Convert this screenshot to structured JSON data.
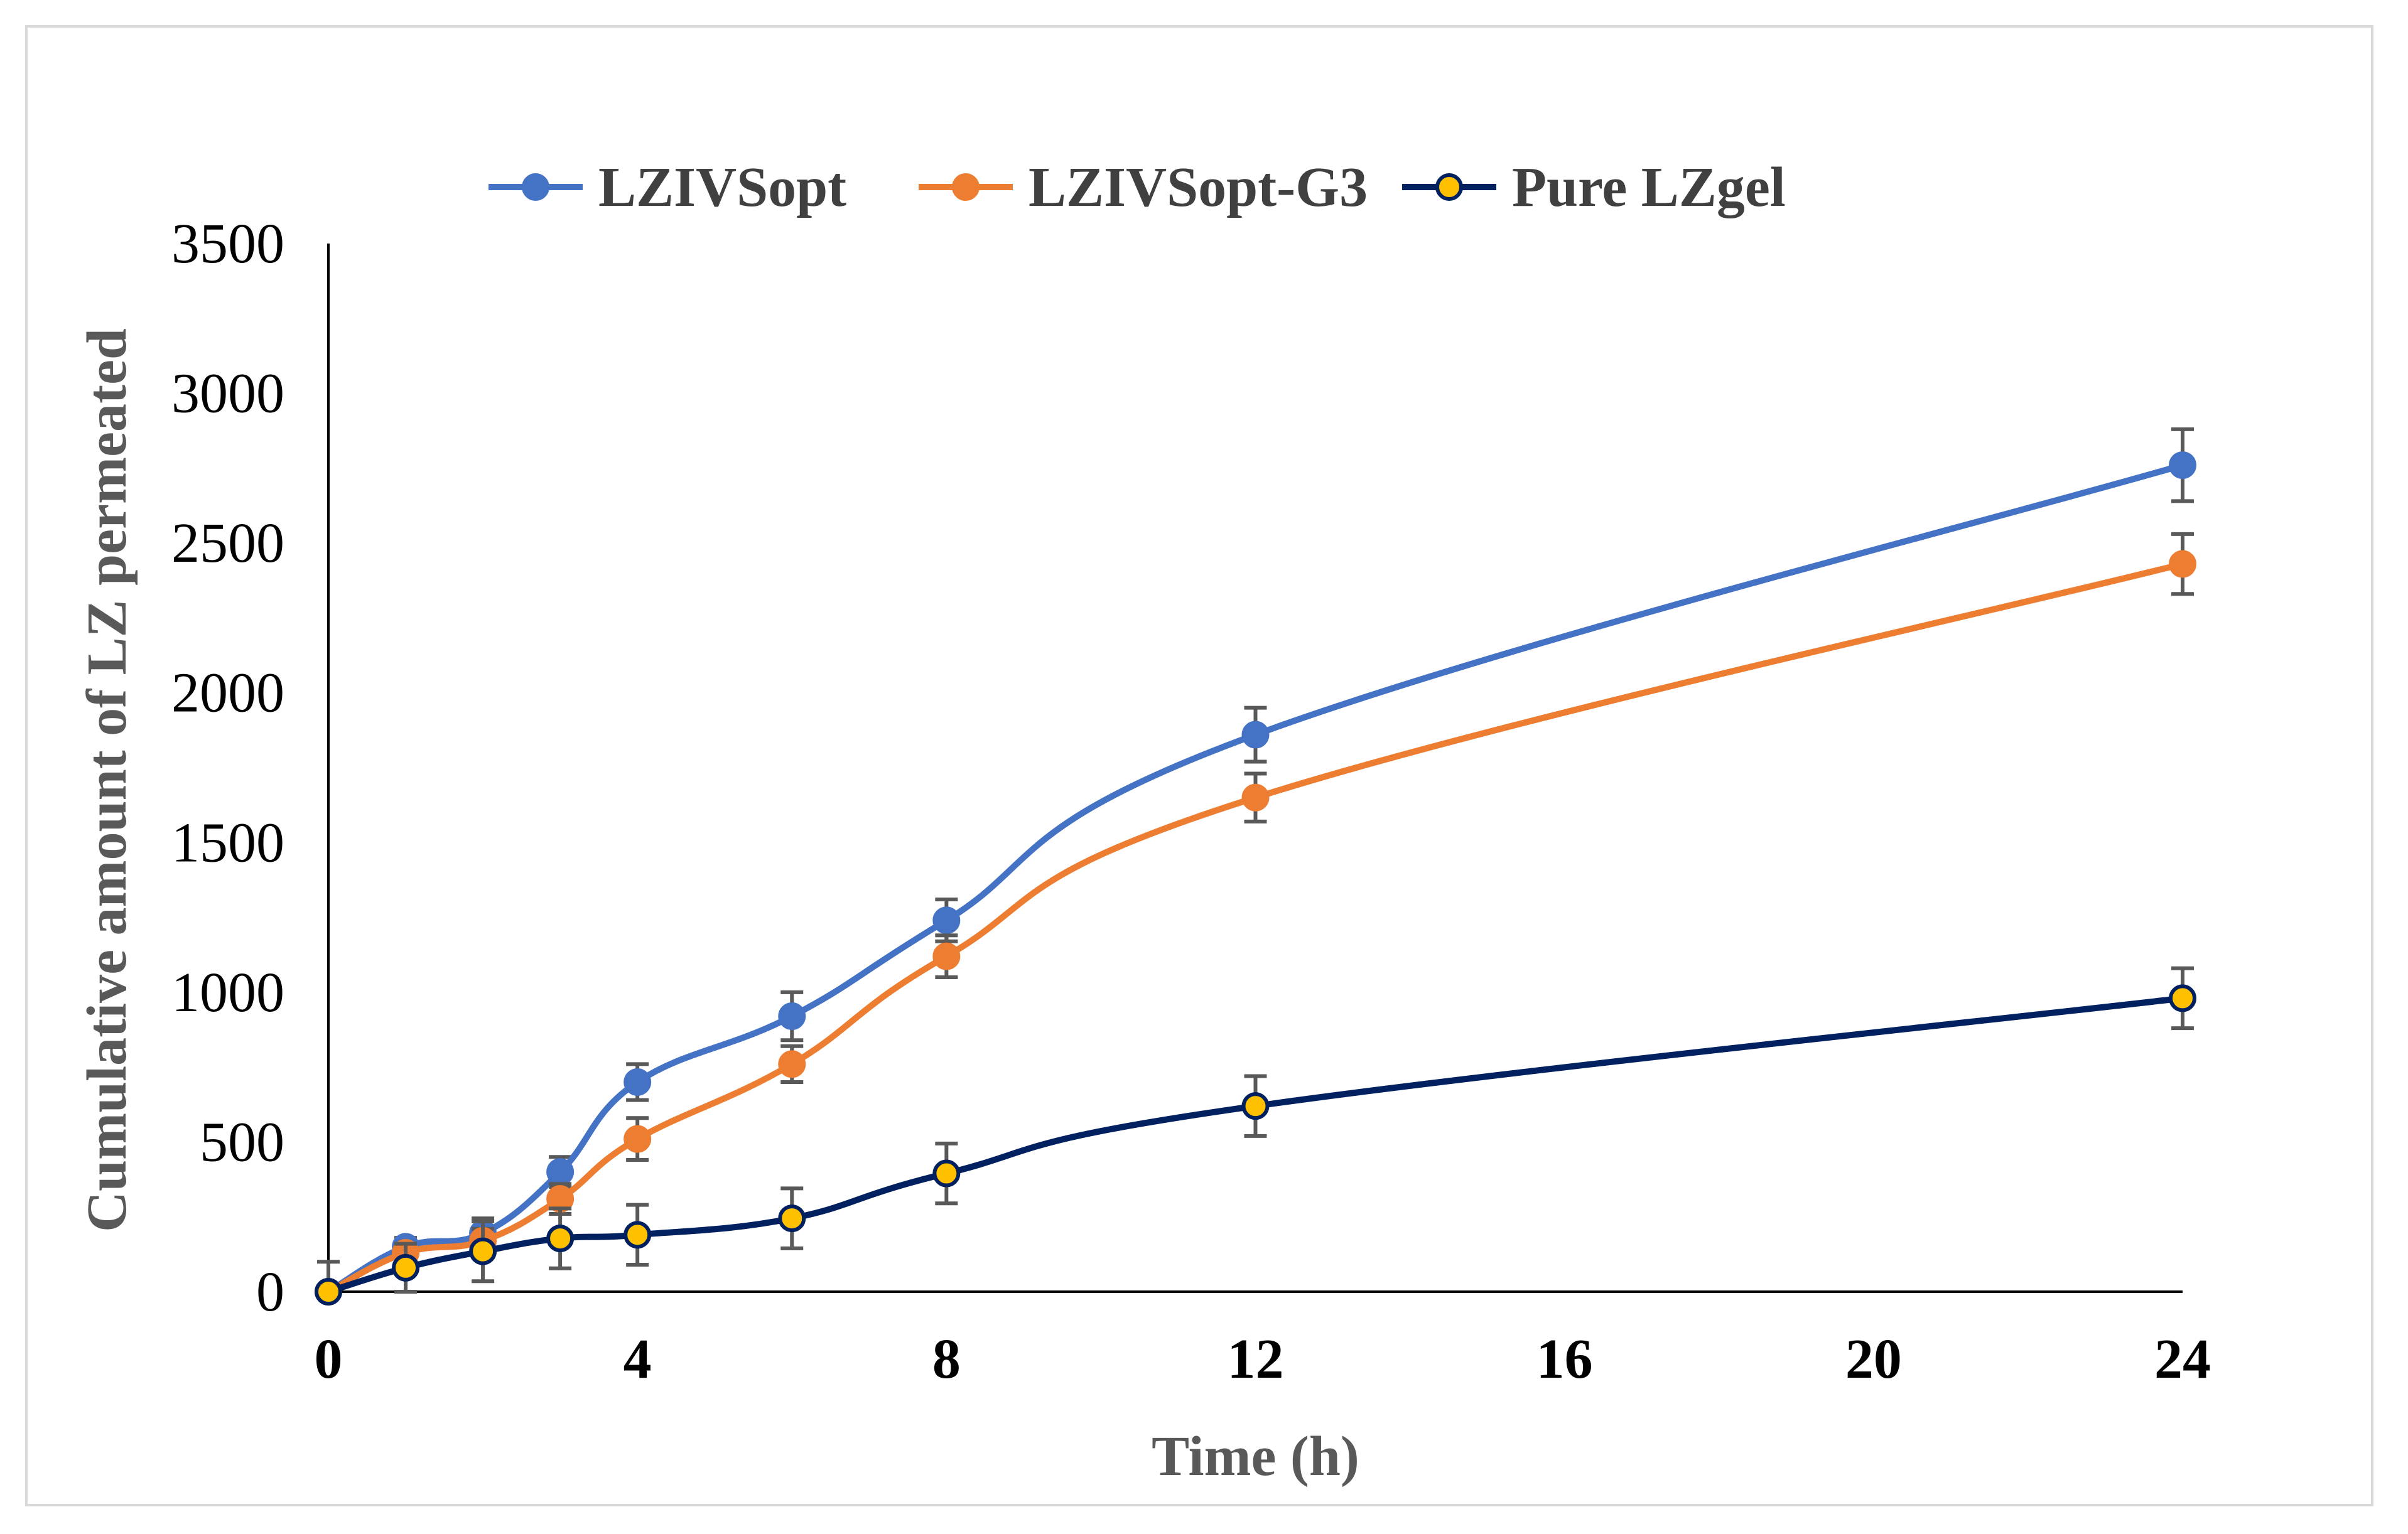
{
  "chart_data": {
    "type": "line",
    "title": "",
    "xlabel": "Time (h)",
    "ylabel": "Cumulative amount of LZ permeated",
    "xlim": [
      0,
      24
    ],
    "ylim": [
      0,
      3500
    ],
    "xticks": [
      0,
      4,
      8,
      12,
      16,
      20,
      24
    ],
    "xtick_labels": [
      "0",
      "4",
      "8",
      "12",
      "16",
      "20",
      "24"
    ],
    "yticks": [
      0,
      500,
      1000,
      1500,
      2000,
      2500,
      3000,
      3500
    ],
    "ytick_labels": [
      "0",
      "500",
      "1000",
      "1500",
      "2000",
      "2500",
      "3000",
      "3500"
    ],
    "grid": false,
    "legend_position": "top",
    "x_positions": [
      0,
      1,
      2,
      3,
      4,
      6,
      8,
      12,
      24
    ],
    "series": [
      {
        "name": "LZIVSopt",
        "color": "#4472c4",
        "marker_fill": "#4472c4",
        "marker_edge": "#4472c4",
        "values": [
          0,
          150,
          195,
          400,
          700,
          920,
          1240,
          1860,
          2760
        ],
        "errors": [
          0,
          30,
          50,
          50,
          60,
          80,
          70,
          90,
          120
        ]
      },
      {
        "name": "LZIVSopt-G3",
        "color": "#ed7d31",
        "marker_fill": "#ed7d31",
        "marker_edge": "#ed7d31",
        "values": [
          0,
          130,
          170,
          310,
          510,
          760,
          1120,
          1650,
          2430
        ],
        "errors": [
          0,
          30,
          40,
          50,
          70,
          60,
          70,
          80,
          100
        ]
      },
      {
        "name": "Pure LZgel",
        "color": "#002060",
        "marker_fill": "#ffc000",
        "marker_edge": "#002060",
        "values": [
          0,
          80,
          135,
          178,
          190,
          245,
          395,
          620,
          980
        ],
        "errors": [
          100,
          80,
          100,
          100,
          100,
          100,
          100,
          100,
          100
        ]
      }
    ]
  }
}
